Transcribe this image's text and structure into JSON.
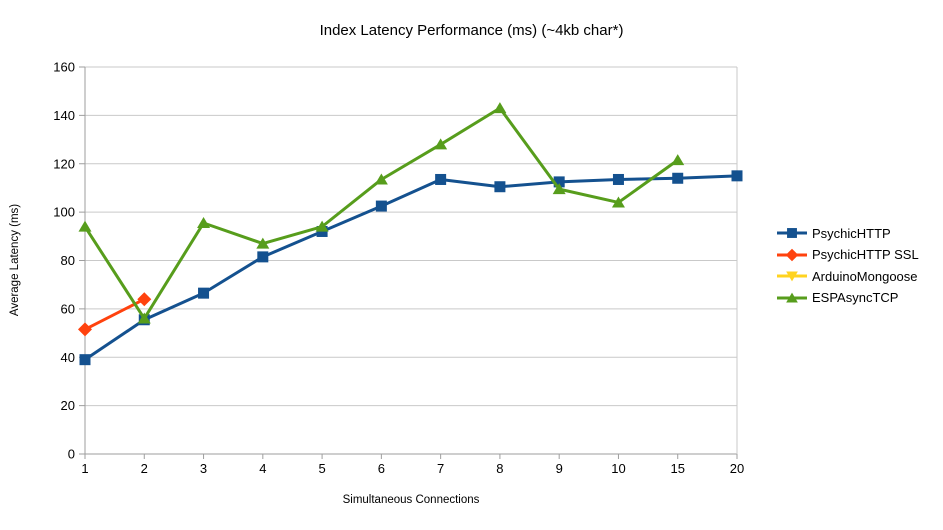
{
  "chart_data": {
    "type": "line",
    "title": "Index Latency Performance (ms) (~4kb char*)",
    "xlabel": "Simultaneous Connections",
    "ylabel": "Average Latency (ms)",
    "categories": [
      "1",
      "2",
      "3",
      "4",
      "5",
      "6",
      "7",
      "8",
      "9",
      "10",
      "15",
      "20"
    ],
    "ylim": [
      0,
      160
    ],
    "ytick_step": 20,
    "grid": "horizontal-only",
    "legend_position": "right-middle",
    "axis_color": "#9e9e9e",
    "grid_color": "#c9c9c9",
    "series": [
      {
        "name": "PsychicHTTP",
        "color": "#14518f",
        "marker": "square",
        "values": [
          39,
          55.5,
          66.5,
          81.5,
          92,
          102.5,
          113.5,
          110.5,
          112.5,
          113.5,
          114,
          115
        ]
      },
      {
        "name": "PsychicHTTP SSL",
        "color": "#ff420e",
        "marker": "diamond",
        "values": [
          51.5,
          64,
          null,
          null,
          null,
          null,
          null,
          null,
          null,
          null,
          null,
          null
        ]
      },
      {
        "name": "ArduinoMongoose",
        "color": "#ffd320",
        "marker": "triangle-down",
        "values": [
          null,
          null,
          null,
          null,
          null,
          null,
          null,
          null,
          null,
          null,
          null,
          null
        ]
      },
      {
        "name": "ESPAsyncTCP",
        "color": "#579d1c",
        "marker": "triangle-up",
        "values": [
          94,
          56,
          95.5,
          87,
          94,
          113.5,
          128,
          143,
          109.5,
          104,
          121.5,
          null
        ]
      }
    ]
  }
}
